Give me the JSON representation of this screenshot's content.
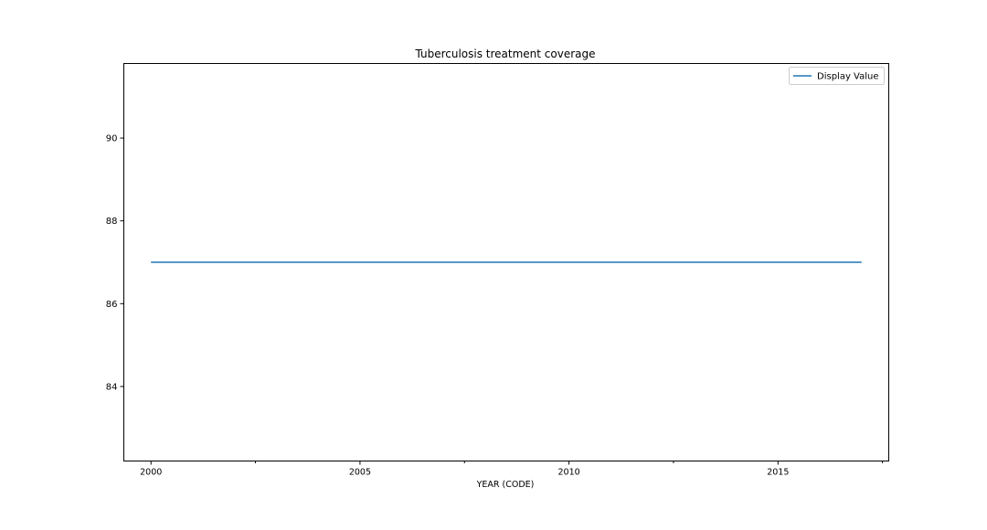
{
  "chart_data": {
    "type": "line",
    "title": "Tuberculosis treatment coverage",
    "xlabel": "YEAR (CODE)",
    "ylabel": "",
    "xlim": [
      1999.35,
      2017.65
    ],
    "ylim": [
      82.2,
      91.8
    ],
    "x_ticks_major": [
      2000,
      2005,
      2010,
      2015
    ],
    "x_tick_labels": [
      "2000",
      "2005",
      "2010",
      "2015"
    ],
    "x_ticks_minor": [
      2002.5,
      2007.5,
      2012.5,
      2017.5
    ],
    "y_ticks": [
      84,
      86,
      88,
      90
    ],
    "y_tick_labels": [
      "84",
      "86",
      "88",
      "90"
    ],
    "grid": false,
    "legend_position": "top-right",
    "series": [
      {
        "name": "Display Value",
        "color": "#1f77b4",
        "x": [
          2000,
          2017
        ],
        "y": [
          87,
          87
        ]
      }
    ]
  }
}
